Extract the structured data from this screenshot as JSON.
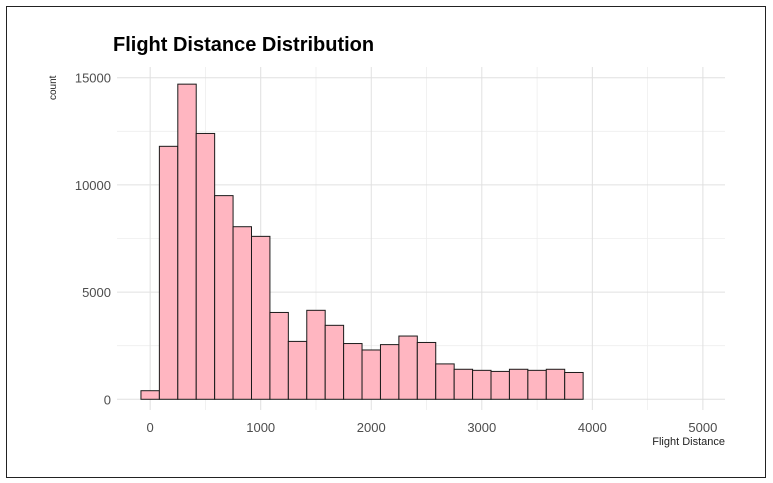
{
  "chart_data": {
    "type": "bar",
    "title": "Flight Distance Distribution",
    "xlabel": "Flight Distance",
    "ylabel": "count",
    "bin_width": 166.67,
    "bin_centers": [
      0,
      166.67,
      333.33,
      500,
      666.67,
      833.33,
      1000,
      1166.67,
      1333.33,
      1500,
      1666.67,
      1833.33,
      2000,
      2166.67,
      2333.33,
      2500,
      2666.67,
      2833.33,
      3000,
      3166.67,
      3333.33,
      3500,
      3666.67,
      3833.33,
      4000,
      4166.67,
      4333.33,
      4500,
      4666.67,
      4833.33,
      5000
    ],
    "values": [
      400,
      11800,
      14700,
      12400,
      9500,
      8050,
      7600,
      4050,
      2700,
      4150,
      3450,
      2600,
      2300,
      2550,
      2950,
      2650,
      1650,
      1400,
      1350,
      1300,
      1400,
      1350,
      1400,
      1250,
      0,
      0,
      0,
      0,
      0,
      0,
      0
    ],
    "xlim": [
      -300,
      5200
    ],
    "ylim": [
      -500,
      15500
    ],
    "x_ticks": [
      0,
      1000,
      2000,
      3000,
      4000,
      5000
    ],
    "y_ticks": [
      0,
      5000,
      10000,
      15000
    ],
    "x_tick_labels": [
      "0",
      "1000",
      "2000",
      "3000",
      "4000",
      "5000"
    ],
    "y_tick_labels": [
      "0",
      "5000",
      "10000",
      "15000"
    ],
    "bar_fill": "#ffb6c1",
    "bar_stroke": "#1a1a1a",
    "grid": true,
    "grid_color": "#e0e0e0"
  }
}
